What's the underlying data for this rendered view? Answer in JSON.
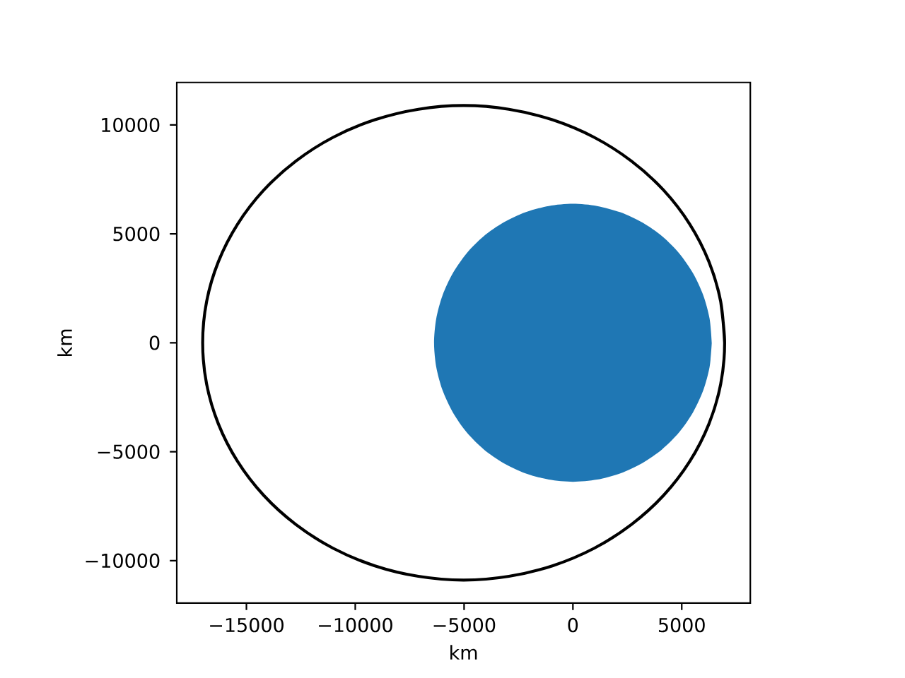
{
  "chart_data": {
    "type": "line",
    "xlabel": "km",
    "ylabel": "km",
    "xlim": [
      -18200,
      8150
    ],
    "ylim": [
      -11950,
      11950
    ],
    "xticks": [
      {
        "value": -15000,
        "label": "−15000"
      },
      {
        "value": -10000,
        "label": "−10000"
      },
      {
        "value": -5000,
        "label": "−5000"
      },
      0,
      5000
    ],
    "yticks": [
      {
        "value": -10000,
        "label": "−10000"
      },
      {
        "value": -5000,
        "label": "−5000"
      },
      0,
      5000,
      10000
    ],
    "series": [
      {
        "type": "area",
        "color": "#1f77b4",
        "x": [
          6380,
          6280,
          5990,
          5520,
          4890,
          4100,
          3190,
          2180,
          1110,
          0,
          -1110,
          -2180,
          -3190,
          -4100,
          -4890,
          -5520,
          -5990,
          -6280,
          -6380,
          -6280,
          -5990,
          -5520,
          -4890,
          -4100,
          -3190,
          -2180,
          -1110,
          0,
          1110,
          2180,
          3190,
          4100,
          4890,
          5520,
          5990,
          6280,
          6380
        ],
        "values": [
          0,
          1110,
          2180,
          3190,
          4100,
          4890,
          5520,
          5990,
          6280,
          6380,
          6280,
          5990,
          5520,
          4890,
          4100,
          3190,
          2180,
          1110,
          0,
          -1110,
          -2180,
          -3190,
          -4100,
          -4890,
          -5520,
          -5990,
          -6280,
          -6380,
          -6280,
          -5990,
          -5520,
          -4890,
          -4100,
          -3190,
          -2180,
          -1110,
          0
        ]
      },
      {
        "color": "#000000",
        "x": [
          6970,
          6790,
          6250,
          5370,
          4170,
          2690,
          980,
          -920,
          -2940,
          -5020,
          -7100,
          -9120,
          -11020,
          -12730,
          -14210,
          -15410,
          -16290,
          -16830,
          -17010,
          -16830,
          -16290,
          -15410,
          -14210,
          -12730,
          -11020,
          -9120,
          -7100,
          -5020,
          -2940,
          -920,
          980,
          2690,
          4170,
          5370,
          6250,
          6790,
          6970,
          6790
        ],
        "values": [
          0,
          1890,
          3720,
          5440,
          7000,
          8340,
          9430,
          10230,
          10720,
          10890,
          10720,
          10230,
          9430,
          8340,
          7000,
          5440,
          3720,
          1890,
          0,
          -1890,
          -3720,
          -5440,
          -7000,
          -8340,
          -9430,
          -10230,
          -10720,
          -10890,
          -10720,
          -10230,
          -9430,
          -8340,
          -7000,
          -5440,
          -3720,
          -1890,
          0,
          1890
        ]
      }
    ]
  }
}
